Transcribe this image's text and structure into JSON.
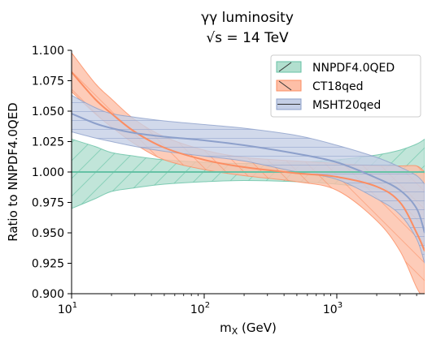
{
  "chart_data": {
    "type": "line",
    "title": "γγ luminosity",
    "subtitle_prefix": "√s",
    "subtitle_suffix": " = 14 TeV",
    "xlabel": "m",
    "xlabel_sub": "X",
    "xlabel_unit": " (GeV)",
    "ylabel": "Ratio to NNPDF4.0QED",
    "xscale": "log",
    "xlim": [
      10,
      4600
    ],
    "ylim": [
      0.9,
      1.1
    ],
    "yticks": [
      "0.900",
      "0.925",
      "0.950",
      "0.975",
      "1.000",
      "1.025",
      "1.050",
      "1.075",
      "1.100"
    ],
    "xticks": [
      {
        "value": 10,
        "base": "10",
        "exp": "1"
      },
      {
        "value": 100,
        "base": "10",
        "exp": "2"
      },
      {
        "value": 1000,
        "base": "10",
        "exp": "3"
      }
    ],
    "grid": false,
    "legend_position": "top-right",
    "x": [
      10,
      15,
      20,
      30,
      50,
      100,
      200,
      500,
      1000,
      2000,
      3000,
      4000,
      4600
    ],
    "series": [
      {
        "name": "NNPDF4.0QED",
        "color": "#66c2a5",
        "fill": "#b2dfcf",
        "hatch": "diagonal",
        "central": [
          1.0,
          1.0,
          1.0,
          1.0,
          1.0,
          1.0,
          1.0,
          1.0,
          1.0,
          1.0,
          1.0,
          1.0,
          1.0
        ],
        "upper": [
          1.027,
          1.021,
          1.016,
          1.013,
          1.01,
          1.008,
          1.007,
          1.008,
          1.01,
          1.014,
          1.018,
          1.023,
          1.027
        ],
        "lower": [
          0.97,
          0.978,
          0.984,
          0.987,
          0.99,
          0.992,
          0.993,
          0.992,
          0.99,
          0.986,
          0.982,
          0.977,
          0.973
        ]
      },
      {
        "name": "CT18qed",
        "color": "#fc8d62",
        "fill": "#fdbfa7",
        "hatch": "backslash",
        "central": [
          1.082,
          1.06,
          1.048,
          1.033,
          1.02,
          1.01,
          1.004,
          0.999,
          0.996,
          0.988,
          0.975,
          0.95,
          0.935
        ],
        "upper": [
          1.098,
          1.073,
          1.06,
          1.043,
          1.029,
          1.018,
          1.012,
          1.009,
          1.007,
          1.005,
          1.005,
          1.005,
          1.0
        ],
        "lower": [
          1.066,
          1.048,
          1.037,
          1.023,
          1.01,
          1.002,
          0.997,
          0.992,
          0.985,
          0.96,
          0.935,
          0.905,
          0.895
        ]
      },
      {
        "name": "MSHT20qed",
        "color": "#8da0cb",
        "fill": "#c5cfe6",
        "hatch": "horizontal",
        "central": [
          1.048,
          1.04,
          1.036,
          1.032,
          1.029,
          1.026,
          1.022,
          1.015,
          1.008,
          0.995,
          0.985,
          0.97,
          0.95
        ],
        "upper": [
          1.063,
          1.053,
          1.048,
          1.045,
          1.042,
          1.039,
          1.036,
          1.03,
          1.022,
          1.012,
          1.004,
          0.997,
          0.99
        ],
        "lower": [
          1.033,
          1.028,
          1.025,
          1.021,
          1.017,
          1.013,
          1.009,
          1.0,
          0.994,
          0.978,
          0.965,
          0.945,
          0.925
        ]
      }
    ]
  }
}
